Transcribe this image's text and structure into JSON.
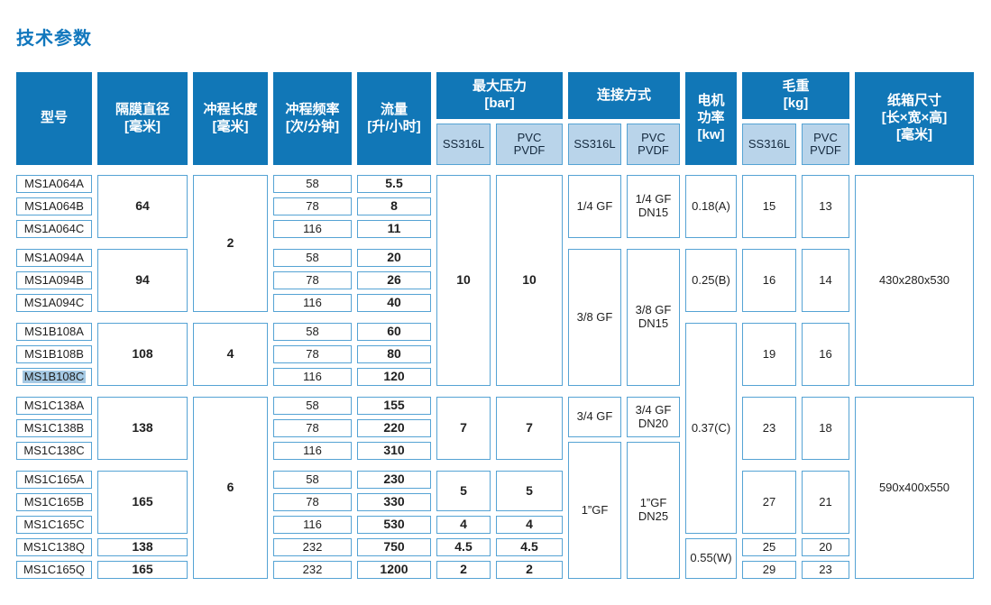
{
  "title": "技术参数",
  "colors": {
    "header_bg": "#1177b7",
    "subheader_bg": "#b9d4ea",
    "subheader_text": "#14293e",
    "border": "#55a3d4",
    "title_text": "#1177bd",
    "highlight": "#a5c9e4",
    "text": "#1f1f1f"
  },
  "table": {
    "row_count": 17,
    "group_separators_after_rows": [
      3,
      6,
      9,
      12
    ],
    "columns": [
      {
        "name": "model",
        "width": 84,
        "bold": false
      },
      {
        "name": "diaphragm-diameter",
        "width": 100,
        "bold": true
      },
      {
        "name": "stroke-length",
        "width": 83,
        "bold": true
      },
      {
        "name": "stroke-frequency",
        "width": 87,
        "bold": false
      },
      {
        "name": "flow-rate",
        "width": 82,
        "bold": true
      },
      {
        "name": "max-pressure-ss316l",
        "width": 60,
        "bold": true
      },
      {
        "name": "max-pressure-pvc-pvdf",
        "width": 74,
        "bold": true
      },
      {
        "name": "connection-ss316l",
        "width": 59,
        "bold": false
      },
      {
        "name": "connection-pvc-pvdf",
        "width": 59,
        "bold": false
      },
      {
        "name": "motor-power",
        "width": 57,
        "bold": false
      },
      {
        "name": "gross-weight-ss316l",
        "width": 60,
        "bold": false
      },
      {
        "name": "gross-weight-pvc-pvdf",
        "width": 53,
        "bold": false
      },
      {
        "name": "carton-size",
        "width": 132,
        "bold": false
      }
    ],
    "header_cells": [
      {
        "id": "model",
        "col": 1,
        "colspan": 1,
        "group": false,
        "lines": [
          "型号"
        ]
      },
      {
        "id": "diaphragm-diameter",
        "col": 2,
        "colspan": 1,
        "group": false,
        "lines": [
          "隔膜直径",
          "[毫米]"
        ]
      },
      {
        "id": "stroke-length",
        "col": 3,
        "colspan": 1,
        "group": false,
        "lines": [
          "冲程长度",
          "[毫米]"
        ]
      },
      {
        "id": "stroke-frequency",
        "col": 4,
        "colspan": 1,
        "group": false,
        "lines": [
          "冲程频率",
          "[次/分钟]"
        ]
      },
      {
        "id": "flow-rate",
        "col": 5,
        "colspan": 1,
        "group": false,
        "lines": [
          "流量",
          "[升/小时]"
        ]
      },
      {
        "id": "max-pressure",
        "col": 6,
        "colspan": 2,
        "group": true,
        "lines": [
          "最大压力",
          "[bar]"
        ]
      },
      {
        "id": "connection",
        "col": 8,
        "colspan": 2,
        "group": true,
        "lines": [
          "连接方式"
        ]
      },
      {
        "id": "motor-power",
        "col": 10,
        "colspan": 1,
        "group": false,
        "lines": [
          "电机",
          "功率",
          "[kw]"
        ]
      },
      {
        "id": "gross-weight",
        "col": 11,
        "colspan": 2,
        "group": true,
        "lines": [
          "毛重",
          "[kg]"
        ]
      },
      {
        "id": "carton-size",
        "col": 13,
        "colspan": 1,
        "group": false,
        "lines": [
          "纸箱尺寸",
          "[长×宽×高]",
          "[毫米]"
        ]
      }
    ],
    "subheader_cells": [
      {
        "id": "max-pressure-ss316l",
        "col": 6,
        "lines": [
          "SS316L"
        ]
      },
      {
        "id": "max-pressure-pvc-pvdf",
        "col": 7,
        "lines": [
          "PVC",
          "PVDF"
        ]
      },
      {
        "id": "connection-ss316l",
        "col": 8,
        "lines": [
          "SS316L"
        ]
      },
      {
        "id": "connection-pvc-pvdf",
        "col": 9,
        "lines": [
          "PVC",
          "PVDF"
        ]
      },
      {
        "id": "gross-weight-ss316l",
        "col": 11,
        "lines": [
          "SS316L"
        ]
      },
      {
        "id": "gross-weight-pvc-pvdf",
        "col": 12,
        "lines": [
          "PVC",
          "PVDF"
        ]
      }
    ],
    "body_cells": [
      {
        "col": 1,
        "row": 1,
        "lines": [
          "MS1A064A"
        ]
      },
      {
        "col": 1,
        "row": 2,
        "lines": [
          "MS1A064B"
        ]
      },
      {
        "col": 1,
        "row": 3,
        "lines": [
          "MS1A064C"
        ]
      },
      {
        "col": 1,
        "row": 4,
        "lines": [
          "MS1A094A"
        ]
      },
      {
        "col": 1,
        "row": 5,
        "lines": [
          "MS1A094B"
        ]
      },
      {
        "col": 1,
        "row": 6,
        "lines": [
          "MS1A094C"
        ]
      },
      {
        "col": 1,
        "row": 7,
        "lines": [
          "MS1B108A"
        ]
      },
      {
        "col": 1,
        "row": 8,
        "lines": [
          "MS1B108B"
        ]
      },
      {
        "col": 1,
        "row": 9,
        "lines": [
          "MS1B108C"
        ],
        "highlight": true
      },
      {
        "col": 1,
        "row": 10,
        "lines": [
          "MS1C138A"
        ]
      },
      {
        "col": 1,
        "row": 11,
        "lines": [
          "MS1C138B"
        ]
      },
      {
        "col": 1,
        "row": 12,
        "lines": [
          "MS1C138C"
        ]
      },
      {
        "col": 1,
        "row": 13,
        "lines": [
          "MS1C165A"
        ]
      },
      {
        "col": 1,
        "row": 14,
        "lines": [
          "MS1C165B"
        ]
      },
      {
        "col": 1,
        "row": 15,
        "lines": [
          "MS1C165C"
        ]
      },
      {
        "col": 1,
        "row": 16,
        "lines": [
          "MS1C138Q"
        ]
      },
      {
        "col": 1,
        "row": 17,
        "lines": [
          "MS1C165Q"
        ]
      },
      {
        "col": 2,
        "row": 1,
        "span": 3,
        "lines": [
          "64"
        ]
      },
      {
        "col": 2,
        "row": 4,
        "span": 3,
        "lines": [
          "94"
        ]
      },
      {
        "col": 2,
        "row": 7,
        "span": 3,
        "lines": [
          "108"
        ]
      },
      {
        "col": 2,
        "row": 10,
        "span": 3,
        "lines": [
          "138"
        ]
      },
      {
        "col": 2,
        "row": 13,
        "span": 3,
        "lines": [
          "165"
        ]
      },
      {
        "col": 2,
        "row": 16,
        "lines": [
          "138"
        ]
      },
      {
        "col": 2,
        "row": 17,
        "lines": [
          "165"
        ]
      },
      {
        "col": 3,
        "row": 1,
        "span": 6,
        "lines": [
          "2"
        ]
      },
      {
        "col": 3,
        "row": 7,
        "span": 3,
        "lines": [
          "4"
        ]
      },
      {
        "col": 3,
        "row": 10,
        "span": 8,
        "lines": [
          "6"
        ]
      },
      {
        "col": 4,
        "row": 1,
        "lines": [
          "58"
        ]
      },
      {
        "col": 4,
        "row": 2,
        "lines": [
          "78"
        ]
      },
      {
        "col": 4,
        "row": 3,
        "lines": [
          "116"
        ]
      },
      {
        "col": 4,
        "row": 4,
        "lines": [
          "58"
        ]
      },
      {
        "col": 4,
        "row": 5,
        "lines": [
          "78"
        ]
      },
      {
        "col": 4,
        "row": 6,
        "lines": [
          "116"
        ]
      },
      {
        "col": 4,
        "row": 7,
        "lines": [
          "58"
        ]
      },
      {
        "col": 4,
        "row": 8,
        "lines": [
          "78"
        ]
      },
      {
        "col": 4,
        "row": 9,
        "lines": [
          "116"
        ]
      },
      {
        "col": 4,
        "row": 10,
        "lines": [
          "58"
        ]
      },
      {
        "col": 4,
        "row": 11,
        "lines": [
          "78"
        ]
      },
      {
        "col": 4,
        "row": 12,
        "lines": [
          "116"
        ]
      },
      {
        "col": 4,
        "row": 13,
        "lines": [
          "58"
        ]
      },
      {
        "col": 4,
        "row": 14,
        "lines": [
          "78"
        ]
      },
      {
        "col": 4,
        "row": 15,
        "lines": [
          "116"
        ]
      },
      {
        "col": 4,
        "row": 16,
        "lines": [
          "232"
        ]
      },
      {
        "col": 4,
        "row": 17,
        "lines": [
          "232"
        ]
      },
      {
        "col": 5,
        "row": 1,
        "lines": [
          "5.5"
        ]
      },
      {
        "col": 5,
        "row": 2,
        "lines": [
          "8"
        ]
      },
      {
        "col": 5,
        "row": 3,
        "lines": [
          "11"
        ]
      },
      {
        "col": 5,
        "row": 4,
        "lines": [
          "20"
        ]
      },
      {
        "col": 5,
        "row": 5,
        "lines": [
          "26"
        ]
      },
      {
        "col": 5,
        "row": 6,
        "lines": [
          "40"
        ]
      },
      {
        "col": 5,
        "row": 7,
        "lines": [
          "60"
        ]
      },
      {
        "col": 5,
        "row": 8,
        "lines": [
          "80"
        ]
      },
      {
        "col": 5,
        "row": 9,
        "lines": [
          "120"
        ]
      },
      {
        "col": 5,
        "row": 10,
        "lines": [
          "155"
        ]
      },
      {
        "col": 5,
        "row": 11,
        "lines": [
          "220"
        ]
      },
      {
        "col": 5,
        "row": 12,
        "lines": [
          "310"
        ]
      },
      {
        "col": 5,
        "row": 13,
        "lines": [
          "230"
        ]
      },
      {
        "col": 5,
        "row": 14,
        "lines": [
          "330"
        ]
      },
      {
        "col": 5,
        "row": 15,
        "lines": [
          "530"
        ]
      },
      {
        "col": 5,
        "row": 16,
        "lines": [
          "750"
        ]
      },
      {
        "col": 5,
        "row": 17,
        "lines": [
          "1200"
        ]
      },
      {
        "col": 6,
        "row": 1,
        "span": 9,
        "lines": [
          "10"
        ]
      },
      {
        "col": 6,
        "row": 10,
        "span": 3,
        "lines": [
          "7"
        ]
      },
      {
        "col": 6,
        "row": 13,
        "span": 2,
        "lines": [
          "5"
        ]
      },
      {
        "col": 6,
        "row": 15,
        "lines": [
          "4"
        ]
      },
      {
        "col": 6,
        "row": 16,
        "lines": [
          "4.5"
        ]
      },
      {
        "col": 6,
        "row": 17,
        "lines": [
          "2"
        ]
      },
      {
        "col": 7,
        "row": 1,
        "span": 9,
        "lines": [
          "10"
        ]
      },
      {
        "col": 7,
        "row": 10,
        "span": 3,
        "lines": [
          "7"
        ]
      },
      {
        "col": 7,
        "row": 13,
        "span": 2,
        "lines": [
          "5"
        ]
      },
      {
        "col": 7,
        "row": 15,
        "lines": [
          "4"
        ]
      },
      {
        "col": 7,
        "row": 16,
        "lines": [
          "4.5"
        ]
      },
      {
        "col": 7,
        "row": 17,
        "lines": [
          "2"
        ]
      },
      {
        "col": 8,
        "row": 1,
        "span": 3,
        "lines": [
          "1/4 GF"
        ]
      },
      {
        "col": 8,
        "row": 4,
        "span": 6,
        "lines": [
          "3/8 GF"
        ]
      },
      {
        "col": 8,
        "row": 10,
        "span": 2,
        "lines": [
          "3/4 GF"
        ]
      },
      {
        "col": 8,
        "row": 12,
        "span": 6,
        "lines": [
          "1”GF"
        ]
      },
      {
        "col": 9,
        "row": 1,
        "span": 3,
        "lines": [
          "1/4 GF",
          "DN15"
        ]
      },
      {
        "col": 9,
        "row": 4,
        "span": 6,
        "lines": [
          "3/8 GF",
          "DN15"
        ]
      },
      {
        "col": 9,
        "row": 10,
        "span": 2,
        "lines": [
          "3/4 GF",
          "DN20"
        ]
      },
      {
        "col": 9,
        "row": 12,
        "span": 6,
        "lines": [
          "1”GF",
          "DN25"
        ]
      },
      {
        "col": 10,
        "row": 1,
        "span": 3,
        "lines": [
          "0.18(A)"
        ]
      },
      {
        "col": 10,
        "row": 4,
        "span": 3,
        "lines": [
          "0.25(B)"
        ]
      },
      {
        "col": 10,
        "row": 7,
        "span": 9,
        "lines": [
          "0.37(C)"
        ]
      },
      {
        "col": 10,
        "row": 16,
        "span": 2,
        "lines": [
          "0.55(W)"
        ]
      },
      {
        "col": 11,
        "row": 1,
        "span": 3,
        "lines": [
          "15"
        ]
      },
      {
        "col": 11,
        "row": 4,
        "span": 3,
        "lines": [
          "16"
        ]
      },
      {
        "col": 11,
        "row": 7,
        "span": 3,
        "lines": [
          "19"
        ]
      },
      {
        "col": 11,
        "row": 10,
        "span": 3,
        "lines": [
          "23"
        ]
      },
      {
        "col": 11,
        "row": 13,
        "span": 3,
        "lines": [
          "27"
        ]
      },
      {
        "col": 11,
        "row": 16,
        "lines": [
          "25"
        ]
      },
      {
        "col": 11,
        "row": 17,
        "lines": [
          "29"
        ]
      },
      {
        "col": 12,
        "row": 1,
        "span": 3,
        "lines": [
          "13"
        ]
      },
      {
        "col": 12,
        "row": 4,
        "span": 3,
        "lines": [
          "14"
        ]
      },
      {
        "col": 12,
        "row": 7,
        "span": 3,
        "lines": [
          "16"
        ]
      },
      {
        "col": 12,
        "row": 10,
        "span": 3,
        "lines": [
          "18"
        ]
      },
      {
        "col": 12,
        "row": 13,
        "span": 3,
        "lines": [
          "21"
        ]
      },
      {
        "col": 12,
        "row": 16,
        "lines": [
          "20"
        ]
      },
      {
        "col": 12,
        "row": 17,
        "lines": [
          "23"
        ]
      },
      {
        "col": 13,
        "row": 1,
        "span": 9,
        "lines": [
          "430x280x530"
        ]
      },
      {
        "col": 13,
        "row": 10,
        "span": 8,
        "lines": [
          "590x400x550"
        ]
      }
    ]
  }
}
